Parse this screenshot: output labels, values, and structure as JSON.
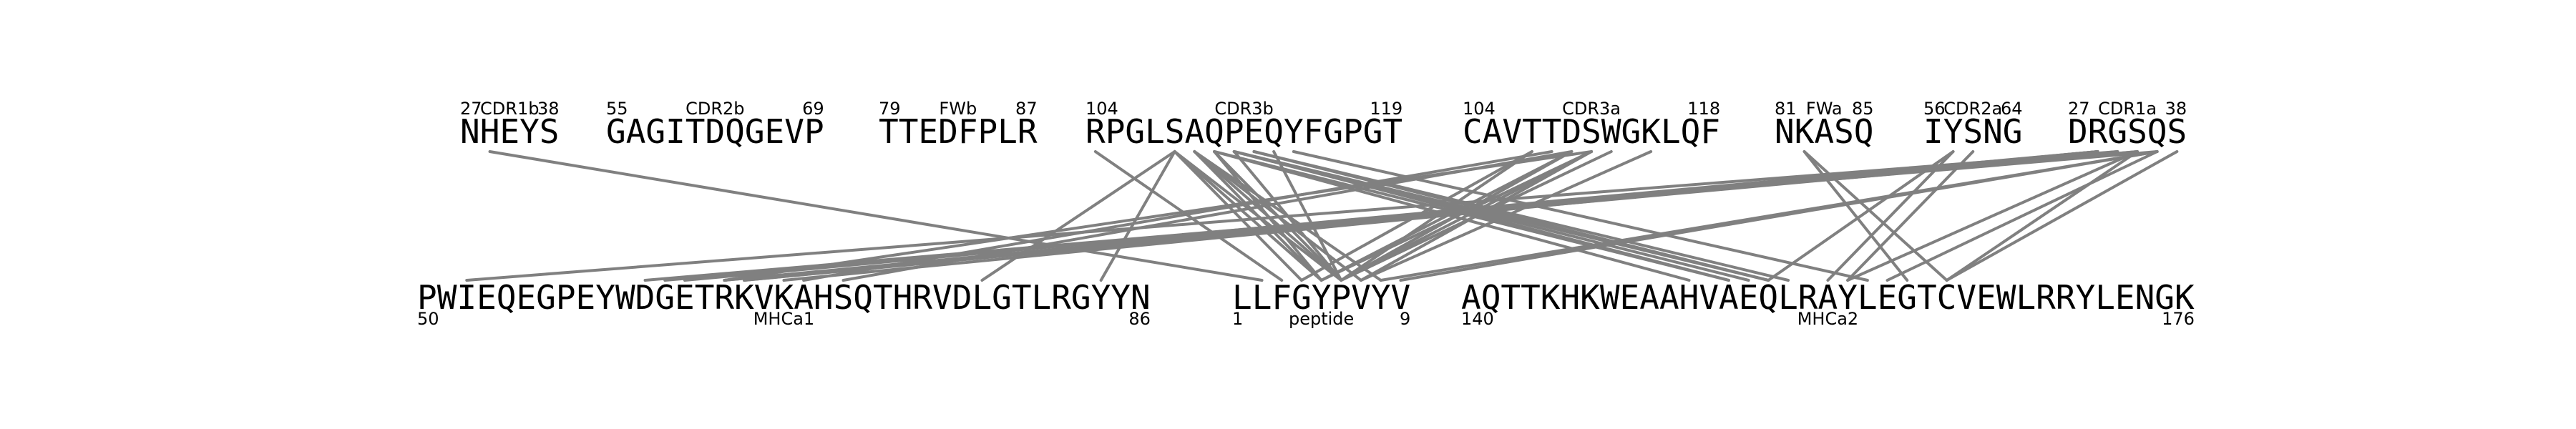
{
  "top_segments": [
    {
      "id": "CDR1b",
      "name": "CDR1b",
      "seq": "NHEYS",
      "start": "27",
      "end": "38"
    },
    {
      "id": "CDR2b",
      "name": "CDR2b",
      "seq": "GAGITDQGEVP",
      "start": "55",
      "end": "69"
    },
    {
      "id": "FWb",
      "name": "FWb",
      "seq": "TTEDFPLR",
      "start": "79",
      "end": "87"
    },
    {
      "id": "CDR3b",
      "name": "CDR3b",
      "seq": "RPGLSAQPEQYFGPGT",
      "start": "104",
      "end": "119"
    },
    {
      "id": "CDR3a",
      "name": "CDR3a",
      "seq": "CAVTTDSWGKLQF",
      "start": "104",
      "end": "118"
    },
    {
      "id": "FWa",
      "name": "FWa",
      "seq": "NKASQ",
      "start": "81",
      "end": "85"
    },
    {
      "id": "CDR2a",
      "name": "CDR2a",
      "seq": "IYSNG",
      "start": "56",
      "end": "64"
    },
    {
      "id": "CDR1a",
      "name": "CDR1a",
      "seq": "DRGSQS",
      "start": "27",
      "end": "38"
    }
  ],
  "bottom_segments": [
    {
      "id": "MHCa1",
      "name": "MHCa1",
      "seq": "PWIEQEGPEYWDGETRKVKAHSQTHRVDLGTLRGYYN",
      "start": "50",
      "end": "86"
    },
    {
      "id": "peptide",
      "name": "peptide",
      "seq": "LLFGYPVYV",
      "start": "1",
      "end": "9"
    },
    {
      "id": "MHCa2",
      "name": "MHCa2",
      "seq": "AQTTKHKWEAAHVAEQLRAYLEGTCVEWLRRYLENGK",
      "start": "140",
      "end": "176"
    }
  ],
  "contacts": [
    [
      "CDR1b",
      1,
      "peptide",
      1
    ],
    [
      "CDR3b",
      0,
      "peptide",
      2
    ],
    [
      "CDR3b",
      4,
      "MHCa1",
      28
    ],
    [
      "CDR3b",
      4,
      "MHCa1",
      34
    ],
    [
      "CDR3b",
      4,
      "peptide",
      3
    ],
    [
      "CDR3b",
      4,
      "peptide",
      4
    ],
    [
      "CDR3b",
      4,
      "peptide",
      5
    ],
    [
      "CDR3b",
      5,
      "peptide",
      4
    ],
    [
      "CDR3b",
      5,
      "peptide",
      5
    ],
    [
      "CDR3b",
      5,
      "peptide",
      6
    ],
    [
      "CDR3b",
      5,
      "peptide",
      7
    ],
    [
      "CDR3b",
      6,
      "peptide",
      4
    ],
    [
      "CDR3b",
      6,
      "peptide",
      5
    ],
    [
      "CDR3b",
      6,
      "MHCa2",
      11
    ],
    [
      "CDR3b",
      6,
      "MHCa2",
      13
    ],
    [
      "CDR3b",
      7,
      "peptide",
      5
    ],
    [
      "CDR3b",
      7,
      "MHCa2",
      13
    ],
    [
      "CDR3b",
      7,
      "MHCa2",
      14
    ],
    [
      "CDR3b",
      7,
      "MHCa2",
      15
    ],
    [
      "CDR3b",
      8,
      "MHCa2",
      15
    ],
    [
      "CDR3b",
      8,
      "MHCa2",
      16
    ],
    [
      "CDR3b",
      9,
      "peptide",
      5
    ],
    [
      "CDR3b",
      10,
      "MHCa2",
      20
    ],
    [
      "CDR3a",
      3,
      "peptide",
      3
    ],
    [
      "CDR3a",
      3,
      "peptide",
      5
    ],
    [
      "CDR3a",
      4,
      "MHCa1",
      19
    ],
    [
      "CDR3a",
      5,
      "peptide",
      4
    ],
    [
      "CDR3a",
      5,
      "peptide",
      5
    ],
    [
      "CDR3a",
      5,
      "MHCa1",
      21
    ],
    [
      "CDR3a",
      6,
      "peptide",
      4
    ],
    [
      "CDR3a",
      6,
      "peptide",
      5
    ],
    [
      "CDR3a",
      6,
      "peptide",
      6
    ],
    [
      "CDR3a",
      6,
      "MHCa1",
      15
    ],
    [
      "CDR3a",
      7,
      "peptide",
      5
    ],
    [
      "CDR3a",
      9,
      "peptide",
      6
    ],
    [
      "FWa",
      1,
      "MHCa2",
      22
    ],
    [
      "FWa",
      1,
      "MHCa2",
      24
    ],
    [
      "CDR2a",
      1,
      "MHCa2",
      15
    ],
    [
      "CDR2a",
      1,
      "MHCa2",
      18
    ],
    [
      "CDR2a",
      2,
      "MHCa2",
      19
    ],
    [
      "CDR1a",
      1,
      "MHCa1",
      13
    ],
    [
      "CDR1a",
      1,
      "MHCa1",
      15
    ],
    [
      "CDR1a",
      1,
      "MHCa1",
      16
    ],
    [
      "CDR1a",
      1,
      "MHCa1",
      18
    ],
    [
      "CDR1a",
      2,
      "MHCa1",
      2
    ],
    [
      "CDR1a",
      2,
      "MHCa1",
      16
    ],
    [
      "CDR1a",
      3,
      "MHCa1",
      12
    ],
    [
      "CDR1a",
      3,
      "MHCa1",
      15
    ],
    [
      "CDR1a",
      3,
      "MHCa2",
      19
    ],
    [
      "CDR1a",
      3,
      "MHCa2",
      24
    ],
    [
      "CDR1a",
      4,
      "MHCa1",
      11
    ],
    [
      "CDR1a",
      4,
      "peptide",
      7
    ],
    [
      "CDR1a",
      4,
      "peptide",
      8
    ],
    [
      "CDR1a",
      4,
      "MHCa2",
      21
    ],
    [
      "CDR1a",
      5,
      "MHCa2",
      24
    ]
  ]
}
